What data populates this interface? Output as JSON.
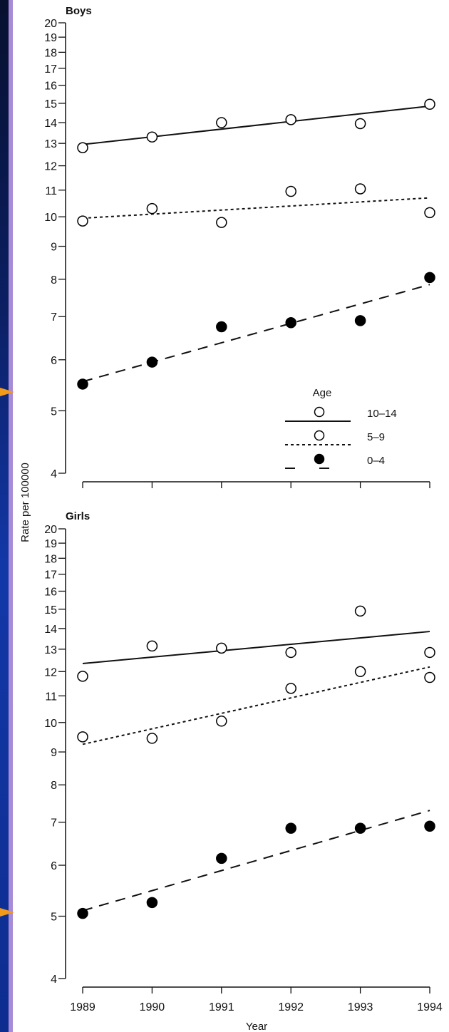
{
  "colors": {
    "sidebar_dark": "#0b1f63",
    "sidebar_blue": "#1238a8",
    "sidebar_purple": "#a78bd6",
    "marker_arrow": "#f29a1a",
    "ink": "#111111"
  },
  "chart_data": {
    "type": "scatter",
    "scale": "log",
    "ylabel": "Rate per 100000",
    "xlabel": "Year",
    "x": [
      1989,
      1990,
      1991,
      1992,
      1993,
      1994
    ],
    "yticks": [
      4,
      5,
      6,
      7,
      8,
      9,
      10,
      11,
      12,
      13,
      14,
      15,
      16,
      17,
      18,
      19,
      20
    ],
    "ylim": [
      4,
      20
    ],
    "legend": {
      "title": "Age",
      "entries": [
        {
          "label": "10–14",
          "marker": "open-circle",
          "line": "solid"
        },
        {
          "label": "5–9",
          "marker": "open-circle",
          "line": "short-dash"
        },
        {
          "label": "0–4",
          "marker": "filled-circle",
          "line": "long-dash"
        }
      ]
    },
    "panels": [
      {
        "title": "Boys",
        "series": [
          {
            "age": "10–14",
            "marker": "open",
            "line": "solid",
            "values": [
              12.8,
              13.3,
              14.0,
              14.15,
              13.95,
              14.95
            ],
            "trend": [
              12.95,
              14.85
            ]
          },
          {
            "age": "5–9",
            "marker": "open",
            "line": "short-dash",
            "values": [
              9.85,
              10.3,
              9.8,
              10.95,
              11.05,
              10.15
            ],
            "trend": [
              9.95,
              10.7
            ]
          },
          {
            "age": "0–4",
            "marker": "filled",
            "line": "long-dash",
            "values": [
              5.5,
              5.95,
              6.75,
              6.85,
              6.9,
              8.05
            ],
            "trend": [
              5.55,
              7.85
            ]
          }
        ]
      },
      {
        "title": "Girls",
        "series": [
          {
            "age": "10–14",
            "marker": "open",
            "line": "solid",
            "values": [
              11.8,
              13.15,
              13.05,
              12.85,
              14.9,
              12.85
            ],
            "trend": [
              12.35,
              13.85
            ]
          },
          {
            "age": "5–9",
            "marker": "open",
            "line": "short-dash",
            "values": [
              9.5,
              9.45,
              10.05,
              11.3,
              12.0,
              11.75
            ],
            "trend": [
              9.25,
              12.2
            ]
          },
          {
            "age": "0–4",
            "marker": "filled",
            "line": "long-dash",
            "values": [
              5.05,
              5.25,
              6.15,
              6.85,
              6.85,
              6.9
            ],
            "trend": [
              5.1,
              7.3
            ]
          }
        ]
      }
    ]
  }
}
